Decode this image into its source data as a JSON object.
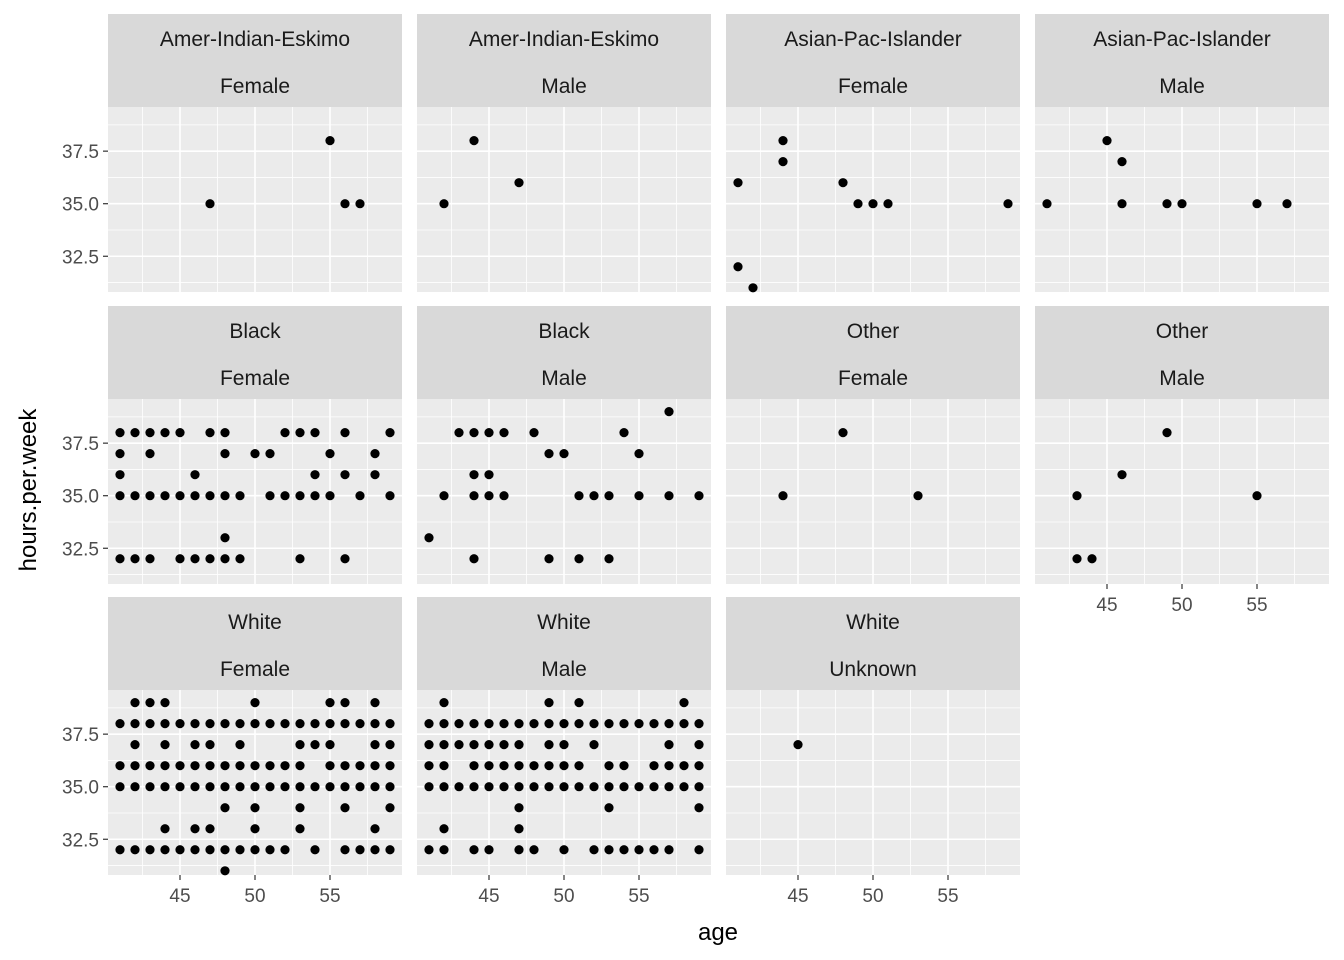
{
  "chart_data": {
    "type": "scatter",
    "xlabel": "age",
    "ylabel": "hours.per.week",
    "xlim": [
      40.2,
      59.8
    ],
    "ylim": [
      30.8,
      39.6
    ],
    "x_ticks": [
      45,
      50,
      55
    ],
    "y_ticks": [
      32.5,
      35.0,
      37.5
    ],
    "y_tick_labels": [
      "32.5",
      "35.0",
      "37.5"
    ],
    "grid": true,
    "colors": {
      "panel_background": "#ebebeb",
      "strip_background": "#d9d9d9",
      "grid": "#ffffff",
      "point": "#000000",
      "tick_label": "#4d4d4d"
    },
    "panels": [
      {
        "race": "Amer-Indian-Eskimo",
        "sex": "Female",
        "points": [
          [
            47,
            35
          ],
          [
            55,
            38
          ],
          [
            56,
            35
          ],
          [
            57,
            35
          ]
        ]
      },
      {
        "race": "Amer-Indian-Eskimo",
        "sex": "Male",
        "points": [
          [
            42,
            35
          ],
          [
            44,
            38
          ],
          [
            47,
            36
          ]
        ]
      },
      {
        "race": "Asian-Pac-Islander",
        "sex": "Female",
        "points": [
          [
            41,
            36
          ],
          [
            41,
            32
          ],
          [
            42,
            31
          ],
          [
            44,
            38
          ],
          [
            44,
            37
          ],
          [
            48,
            36
          ],
          [
            49,
            35
          ],
          [
            50,
            35
          ],
          [
            51,
            35
          ],
          [
            59,
            35
          ]
        ]
      },
      {
        "race": "Asian-Pac-Islander",
        "sex": "Male",
        "points": [
          [
            41,
            35
          ],
          [
            45,
            38
          ],
          [
            46,
            37
          ],
          [
            46,
            35
          ],
          [
            49,
            35
          ],
          [
            50,
            35
          ],
          [
            55,
            35
          ],
          [
            57,
            35
          ]
        ]
      },
      {
        "race": "Black",
        "sex": "Female",
        "points": [
          [
            41,
            38
          ],
          [
            42,
            38
          ],
          [
            43,
            38
          ],
          [
            44,
            38
          ],
          [
            45,
            38
          ],
          [
            47,
            38
          ],
          [
            48,
            38
          ],
          [
            52,
            38
          ],
          [
            53,
            38
          ],
          [
            54,
            38
          ],
          [
            56,
            38
          ],
          [
            59,
            38
          ],
          [
            41,
            37
          ],
          [
            43,
            37
          ],
          [
            48,
            37
          ],
          [
            50,
            37
          ],
          [
            51,
            37
          ],
          [
            55,
            37
          ],
          [
            58,
            37
          ],
          [
            41,
            36
          ],
          [
            46,
            36
          ],
          [
            54,
            36
          ],
          [
            56,
            36
          ],
          [
            58,
            36
          ],
          [
            41,
            35
          ],
          [
            42,
            35
          ],
          [
            43,
            35
          ],
          [
            44,
            35
          ],
          [
            45,
            35
          ],
          [
            46,
            35
          ],
          [
            47,
            35
          ],
          [
            48,
            35
          ],
          [
            49,
            35
          ],
          [
            51,
            35
          ],
          [
            52,
            35
          ],
          [
            53,
            35
          ],
          [
            54,
            35
          ],
          [
            55,
            35
          ],
          [
            57,
            35
          ],
          [
            59,
            35
          ],
          [
            48,
            33
          ],
          [
            41,
            32
          ],
          [
            42,
            32
          ],
          [
            43,
            32
          ],
          [
            45,
            32
          ],
          [
            46,
            32
          ],
          [
            47,
            32
          ],
          [
            48,
            32
          ],
          [
            49,
            32
          ],
          [
            53,
            32
          ],
          [
            56,
            32
          ]
        ]
      },
      {
        "race": "Black",
        "sex": "Male",
        "points": [
          [
            57,
            39
          ],
          [
            43,
            38
          ],
          [
            44,
            38
          ],
          [
            45,
            38
          ],
          [
            46,
            38
          ],
          [
            48,
            38
          ],
          [
            54,
            38
          ],
          [
            49,
            37
          ],
          [
            50,
            37
          ],
          [
            55,
            37
          ],
          [
            44,
            36
          ],
          [
            45,
            36
          ],
          [
            42,
            35
          ],
          [
            44,
            35
          ],
          [
            45,
            35
          ],
          [
            46,
            35
          ],
          [
            51,
            35
          ],
          [
            52,
            35
          ],
          [
            53,
            35
          ],
          [
            55,
            35
          ],
          [
            57,
            35
          ],
          [
            59,
            35
          ],
          [
            41,
            33
          ],
          [
            44,
            32
          ],
          [
            49,
            32
          ],
          [
            51,
            32
          ],
          [
            53,
            32
          ]
        ]
      },
      {
        "race": "Other",
        "sex": "Female",
        "points": [
          [
            48,
            38
          ],
          [
            44,
            35
          ],
          [
            53,
            35
          ]
        ]
      },
      {
        "race": "Other",
        "sex": "Male",
        "points": [
          [
            49,
            38
          ],
          [
            46,
            36
          ],
          [
            43,
            35
          ],
          [
            55,
            35
          ],
          [
            43,
            32
          ],
          [
            44,
            32
          ]
        ]
      },
      {
        "race": "White",
        "sex": "Female",
        "points": [
          [
            42,
            39
          ],
          [
            43,
            39
          ],
          [
            44,
            39
          ],
          [
            50,
            39
          ],
          [
            55,
            39
          ],
          [
            56,
            39
          ],
          [
            58,
            39
          ],
          [
            41,
            38
          ],
          [
            42,
            38
          ],
          [
            43,
            38
          ],
          [
            44,
            38
          ],
          [
            45,
            38
          ],
          [
            46,
            38
          ],
          [
            47,
            38
          ],
          [
            48,
            38
          ],
          [
            49,
            38
          ],
          [
            50,
            38
          ],
          [
            51,
            38
          ],
          [
            52,
            38
          ],
          [
            53,
            38
          ],
          [
            54,
            38
          ],
          [
            55,
            38
          ],
          [
            56,
            38
          ],
          [
            57,
            38
          ],
          [
            58,
            38
          ],
          [
            59,
            38
          ],
          [
            42,
            37
          ],
          [
            44,
            37
          ],
          [
            46,
            37
          ],
          [
            47,
            37
          ],
          [
            49,
            37
          ],
          [
            53,
            37
          ],
          [
            54,
            37
          ],
          [
            55,
            37
          ],
          [
            58,
            37
          ],
          [
            59,
            37
          ],
          [
            41,
            36
          ],
          [
            42,
            36
          ],
          [
            43,
            36
          ],
          [
            44,
            36
          ],
          [
            45,
            36
          ],
          [
            46,
            36
          ],
          [
            47,
            36
          ],
          [
            48,
            36
          ],
          [
            49,
            36
          ],
          [
            50,
            36
          ],
          [
            51,
            36
          ],
          [
            52,
            36
          ],
          [
            53,
            36
          ],
          [
            55,
            36
          ],
          [
            56,
            36
          ],
          [
            57,
            36
          ],
          [
            58,
            36
          ],
          [
            59,
            36
          ],
          [
            41,
            35
          ],
          [
            42,
            35
          ],
          [
            43,
            35
          ],
          [
            44,
            35
          ],
          [
            45,
            35
          ],
          [
            46,
            35
          ],
          [
            47,
            35
          ],
          [
            48,
            35
          ],
          [
            49,
            35
          ],
          [
            50,
            35
          ],
          [
            51,
            35
          ],
          [
            52,
            35
          ],
          [
            53,
            35
          ],
          [
            54,
            35
          ],
          [
            55,
            35
          ],
          [
            56,
            35
          ],
          [
            57,
            35
          ],
          [
            58,
            35
          ],
          [
            59,
            35
          ],
          [
            48,
            34
          ],
          [
            50,
            34
          ],
          [
            53,
            34
          ],
          [
            56,
            34
          ],
          [
            59,
            34
          ],
          [
            44,
            33
          ],
          [
            46,
            33
          ],
          [
            47,
            33
          ],
          [
            50,
            33
          ],
          [
            53,
            33
          ],
          [
            58,
            33
          ],
          [
            41,
            32
          ],
          [
            42,
            32
          ],
          [
            43,
            32
          ],
          [
            44,
            32
          ],
          [
            45,
            32
          ],
          [
            46,
            32
          ],
          [
            47,
            32
          ],
          [
            48,
            32
          ],
          [
            49,
            32
          ],
          [
            50,
            32
          ],
          [
            51,
            32
          ],
          [
            52,
            32
          ],
          [
            54,
            32
          ],
          [
            56,
            32
          ],
          [
            57,
            32
          ],
          [
            58,
            32
          ],
          [
            59,
            32
          ],
          [
            48,
            31
          ]
        ]
      },
      {
        "race": "White",
        "sex": "Male",
        "points": [
          [
            42,
            39
          ],
          [
            49,
            39
          ],
          [
            51,
            39
          ],
          [
            58,
            39
          ],
          [
            41,
            38
          ],
          [
            42,
            38
          ],
          [
            43,
            38
          ],
          [
            44,
            38
          ],
          [
            45,
            38
          ],
          [
            46,
            38
          ],
          [
            47,
            38
          ],
          [
            48,
            38
          ],
          [
            49,
            38
          ],
          [
            50,
            38
          ],
          [
            51,
            38
          ],
          [
            52,
            38
          ],
          [
            53,
            38
          ],
          [
            54,
            38
          ],
          [
            55,
            38
          ],
          [
            56,
            38
          ],
          [
            57,
            38
          ],
          [
            58,
            38
          ],
          [
            59,
            38
          ],
          [
            41,
            37
          ],
          [
            42,
            37
          ],
          [
            43,
            37
          ],
          [
            44,
            37
          ],
          [
            45,
            37
          ],
          [
            46,
            37
          ],
          [
            47,
            37
          ],
          [
            49,
            37
          ],
          [
            50,
            37
          ],
          [
            52,
            37
          ],
          [
            57,
            37
          ],
          [
            59,
            37
          ],
          [
            41,
            36
          ],
          [
            42,
            36
          ],
          [
            44,
            36
          ],
          [
            45,
            36
          ],
          [
            46,
            36
          ],
          [
            47,
            36
          ],
          [
            48,
            36
          ],
          [
            49,
            36
          ],
          [
            50,
            36
          ],
          [
            51,
            36
          ],
          [
            53,
            36
          ],
          [
            54,
            36
          ],
          [
            56,
            36
          ],
          [
            57,
            36
          ],
          [
            58,
            36
          ],
          [
            59,
            36
          ],
          [
            41,
            35
          ],
          [
            42,
            35
          ],
          [
            43,
            35
          ],
          [
            44,
            35
          ],
          [
            45,
            35
          ],
          [
            46,
            35
          ],
          [
            47,
            35
          ],
          [
            48,
            35
          ],
          [
            49,
            35
          ],
          [
            50,
            35
          ],
          [
            51,
            35
          ],
          [
            52,
            35
          ],
          [
            53,
            35
          ],
          [
            54,
            35
          ],
          [
            55,
            35
          ],
          [
            56,
            35
          ],
          [
            57,
            35
          ],
          [
            58,
            35
          ],
          [
            59,
            35
          ],
          [
            47,
            34
          ],
          [
            53,
            34
          ],
          [
            59,
            34
          ],
          [
            42,
            33
          ],
          [
            47,
            33
          ],
          [
            41,
            32
          ],
          [
            42,
            32
          ],
          [
            44,
            32
          ],
          [
            45,
            32
          ],
          [
            47,
            32
          ],
          [
            48,
            32
          ],
          [
            50,
            32
          ],
          [
            52,
            32
          ],
          [
            53,
            32
          ],
          [
            54,
            32
          ],
          [
            55,
            32
          ],
          [
            56,
            32
          ],
          [
            57,
            32
          ],
          [
            59,
            32
          ]
        ]
      },
      {
        "race": "White",
        "sex": "Unknown",
        "points": [
          [
            45,
            37
          ]
        ]
      }
    ]
  }
}
